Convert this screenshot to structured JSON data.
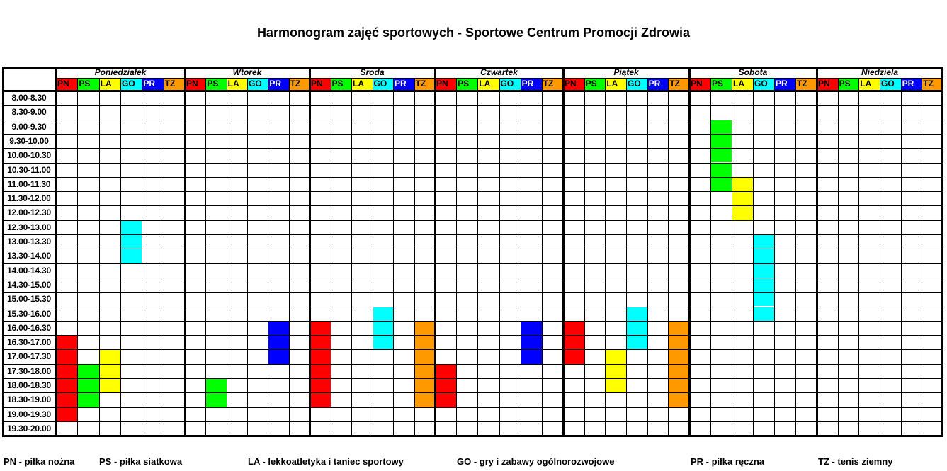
{
  "title": "Harmonogram zajęć sportowych - Sportowe Centrum Promocji Zdrowia",
  "days": [
    "Poniedziałek",
    "Wtorek",
    "Środa",
    "Czwartek",
    "Piątek",
    "Sobota",
    "Niedziela"
  ],
  "sports": [
    {
      "code": "PN",
      "color": "#ff0000",
      "text_color": "#000000"
    },
    {
      "code": "PS",
      "color": "#00ff00",
      "text_color": "#000000"
    },
    {
      "code": "LA",
      "color": "#ffff00",
      "text_color": "#000000"
    },
    {
      "code": "GO",
      "color": "#00ffff",
      "text_color": "#000000"
    },
    {
      "code": "PR",
      "color": "#0000ff",
      "text_color": "#ffffff"
    },
    {
      "code": "TZ",
      "color": "#ff9900",
      "text_color": "#000000"
    }
  ],
  "time_slots": [
    "8.00-8.30",
    "8.30-9.00",
    "9.00-9.30",
    "9.30-10.00",
    "10.00-10.30",
    "10.30-11.00",
    "11.00-11.30",
    "11.30-12.00",
    "12.00-12.30",
    "12.30-13.00",
    "13.00-13.30",
    "13.30-14.00",
    "14.00-14.30",
    "14.30-15.00",
    "15.00-15.30",
    "15.30-16.00",
    "16.00-16.30",
    "16.30-17.00",
    "17.00-17.30",
    "17.30-18.00",
    "18.00-18.30",
    "18.30-19.00",
    "19.00-19.30",
    "19.30-20.00"
  ],
  "schedule": {
    "Poniedziałek": {
      "PN": [
        17,
        18,
        19,
        20,
        21,
        22
      ],
      "PS": [
        19,
        20,
        21
      ],
      "LA": [
        18,
        19,
        20
      ],
      "GO": [
        9,
        10,
        11
      ],
      "PR": [],
      "TZ": []
    },
    "Wtorek": {
      "PN": [],
      "PS": [
        20,
        21
      ],
      "LA": [],
      "GO": [],
      "PR": [
        16,
        17,
        18
      ],
      "TZ": []
    },
    "Środa": {
      "PN": [
        16,
        17,
        18,
        19,
        20,
        21
      ],
      "PS": [],
      "LA": [],
      "GO": [
        15,
        16,
        17
      ],
      "PR": [],
      "TZ": [
        16,
        17,
        18,
        19,
        20,
        21
      ]
    },
    "Czwartek": {
      "PN": [
        19,
        20,
        21
      ],
      "PS": [],
      "LA": [],
      "GO": [],
      "PR": [
        16,
        17,
        18
      ],
      "TZ": []
    },
    "Piątek": {
      "PN": [
        16,
        17,
        18
      ],
      "PS": [],
      "LA": [
        18,
        19,
        20
      ],
      "GO": [
        15,
        16,
        17
      ],
      "PR": [],
      "TZ": [
        16,
        17,
        18,
        19,
        20,
        21
      ]
    },
    "Sobota": {
      "PN": [],
      "PS": [
        2,
        3,
        4,
        5,
        6
      ],
      "LA": [
        6,
        7,
        8
      ],
      "GO": [
        10,
        11,
        12,
        13,
        14,
        15
      ],
      "PR": [],
      "TZ": []
    },
    "Niedziela": {
      "PN": [],
      "PS": [],
      "LA": [],
      "GO": [],
      "PR": [],
      "TZ": []
    }
  },
  "legend": [
    "PN - piłka nożna",
    "PS - piłka siatkowa",
    "LA - lekkoatletyka i taniec sportowy",
    "GO - gry i zabawy ogólnorozwojowe",
    "PR - piłka ręczna",
    "TZ - tenis ziemny"
  ]
}
